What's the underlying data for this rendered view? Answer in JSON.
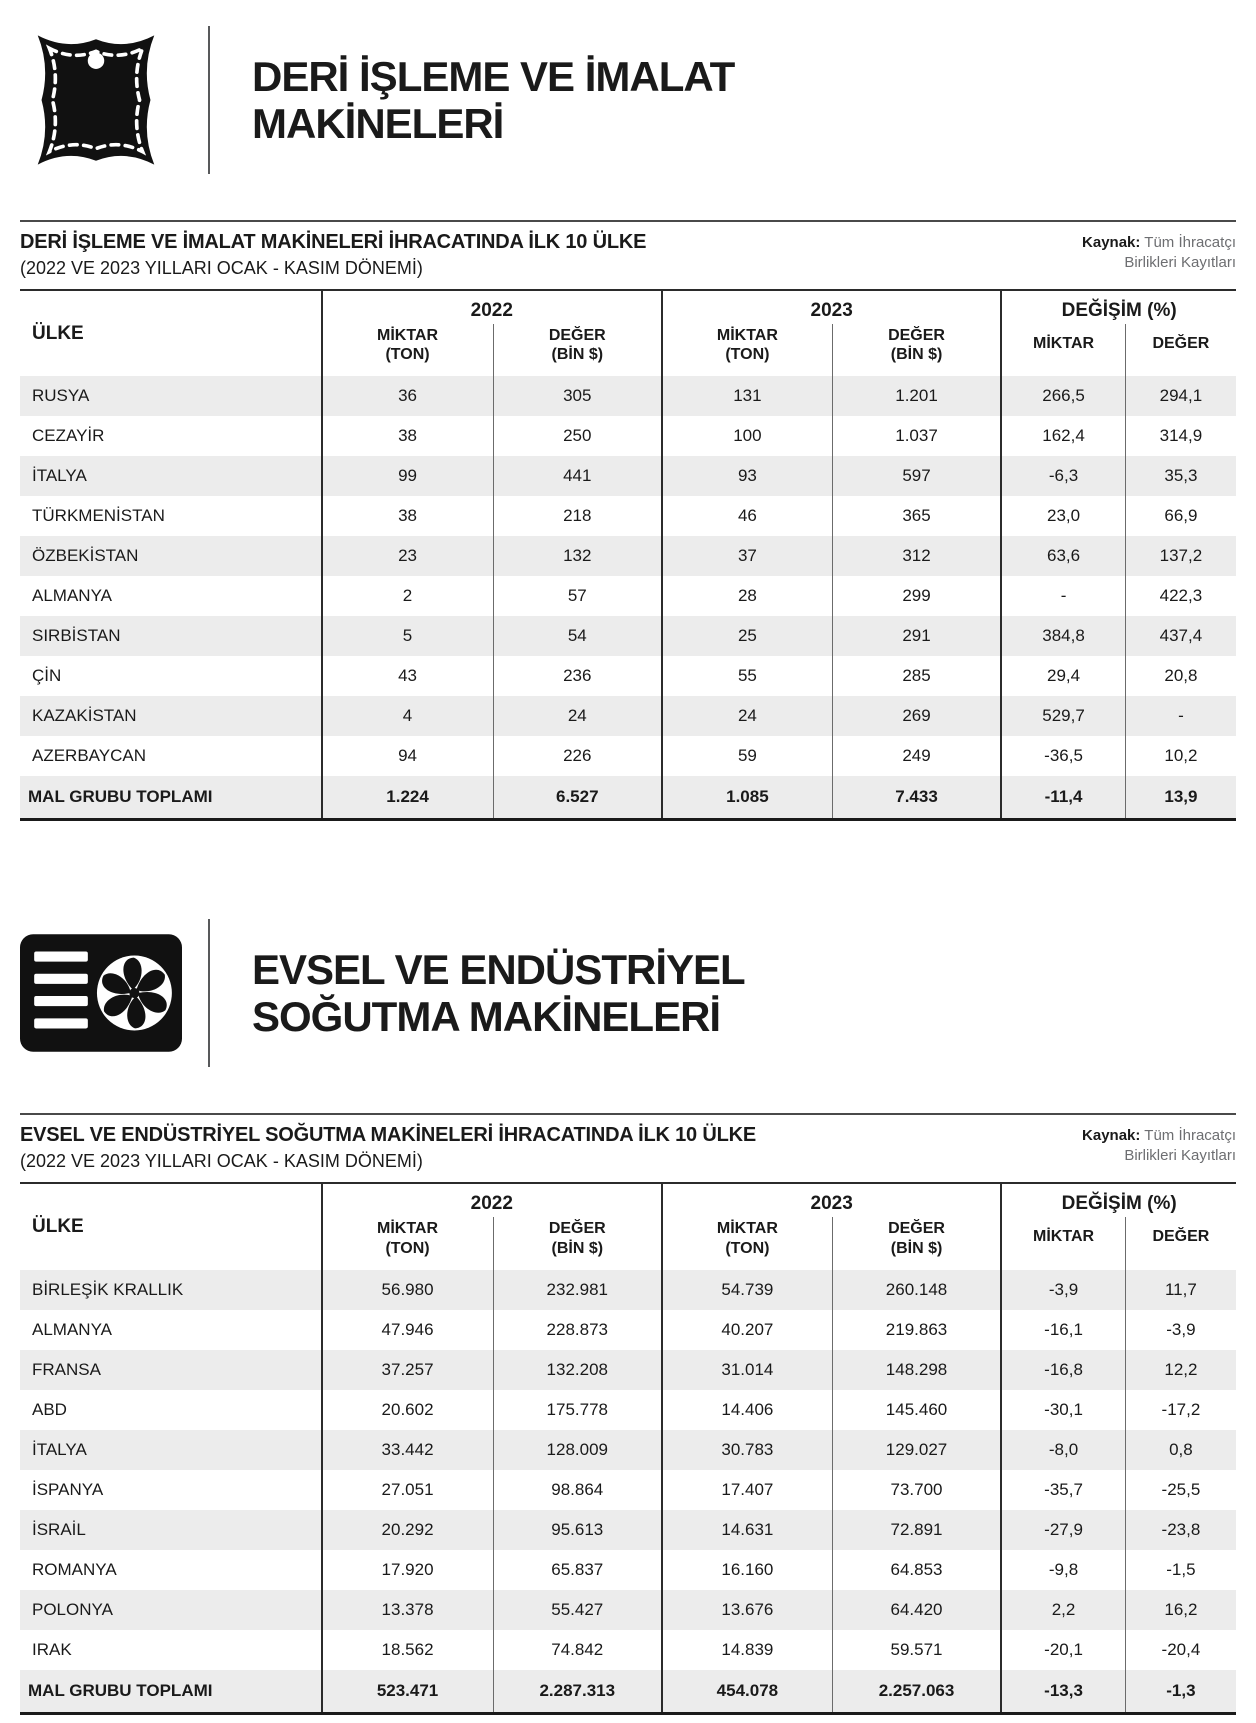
{
  "table_headers": {
    "country": "ÜLKE",
    "year_2022": "2022",
    "year_2023": "2023",
    "change": "DEĞİŞİM (%)",
    "miktar": "MİKTAR",
    "ton": "(TON)",
    "deger": "DEĞER",
    "bin_usd": "(BİN $)"
  },
  "sections": [
    {
      "icon": "leather-hide-icon",
      "title_line1": "DERİ İŞLEME VE İMALAT",
      "title_line2": "MAKİNELERİ",
      "table": {
        "title": "DERİ İŞLEME VE İMALAT MAKİNELERİ İHRACATINDA İLK 10 ÜLKE",
        "subtitle": "(2022 VE 2023 YILLARI OCAK - KASIM DÖNEMİ)",
        "source_label": "Kaynak:",
        "source_line1": "Tüm İhracatçı",
        "source_line2": "Birlikleri Kayıtları",
        "rows": [
          [
            "RUSYA",
            "36",
            "305",
            "131",
            "1.201",
            "266,5",
            "294,1"
          ],
          [
            "CEZAYİR",
            "38",
            "250",
            "100",
            "1.037",
            "162,4",
            "314,9"
          ],
          [
            "İTALYA",
            "99",
            "441",
            "93",
            "597",
            "-6,3",
            "35,3"
          ],
          [
            "TÜRKMENİSTAN",
            "38",
            "218",
            "46",
            "365",
            "23,0",
            "66,9"
          ],
          [
            "ÖZBEKİSTAN",
            "23",
            "132",
            "37",
            "312",
            "63,6",
            "137,2"
          ],
          [
            "ALMANYA",
            "2",
            "57",
            "28",
            "299",
            "-",
            "422,3"
          ],
          [
            "SIRBİSTAN",
            "5",
            "54",
            "25",
            "291",
            "384,8",
            "437,4"
          ],
          [
            "ÇİN",
            "43",
            "236",
            "55",
            "285",
            "29,4",
            "20,8"
          ],
          [
            "KAZAKİSTAN",
            "4",
            "24",
            "24",
            "269",
            "529,7",
            "-"
          ],
          [
            "AZERBAYCAN",
            "94",
            "226",
            "59",
            "249",
            "-36,5",
            "10,2"
          ]
        ],
        "total": [
          "MAL GRUBU TOPLAMI",
          "1.224",
          "6.527",
          "1.085",
          "7.433",
          "-11,4",
          "13,9"
        ]
      }
    },
    {
      "icon": "air-conditioner-icon",
      "title_line1": "EVSEL VE ENDÜSTRİYEL",
      "title_line2": "SOĞUTMA MAKİNELERİ",
      "table": {
        "title": "EVSEL VE ENDÜSTRİYEL SOĞUTMA MAKİNELERİ İHRACATINDA İLK 10 ÜLKE",
        "subtitle": "(2022 VE 2023 YILLARI OCAK - KASIM DÖNEMİ)",
        "source_label": "Kaynak:",
        "source_line1": "Tüm İhracatçı",
        "source_line2": "Birlikleri Kayıtları",
        "rows": [
          [
            "BİRLEŞİK KRALLIK",
            "56.980",
            "232.981",
            "54.739",
            "260.148",
            "-3,9",
            "11,7"
          ],
          [
            "ALMANYA",
            "47.946",
            "228.873",
            "40.207",
            "219.863",
            "-16,1",
            "-3,9"
          ],
          [
            "FRANSA",
            "37.257",
            "132.208",
            "31.014",
            "148.298",
            "-16,8",
            "12,2"
          ],
          [
            "ABD",
            "20.602",
            "175.778",
            "14.406",
            "145.460",
            "-30,1",
            "-17,2"
          ],
          [
            "İTALYA",
            "33.442",
            "128.009",
            "30.783",
            "129.027",
            "-8,0",
            "0,8"
          ],
          [
            "İSPANYA",
            "27.051",
            "98.864",
            "17.407",
            "73.700",
            "-35,7",
            "-25,5"
          ],
          [
            "İSRAİL",
            "20.292",
            "95.613",
            "14.631",
            "72.891",
            "-27,9",
            "-23,8"
          ],
          [
            "ROMANYA",
            "17.920",
            "65.837",
            "16.160",
            "64.853",
            "-9,8",
            "-1,5"
          ],
          [
            "POLONYA",
            "13.378",
            "55.427",
            "13.676",
            "64.420",
            "2,2",
            "16,2"
          ],
          [
            "IRAK",
            "18.562",
            "74.842",
            "14.839",
            "59.571",
            "-20,1",
            "-20,4"
          ]
        ],
        "total": [
          "MAL GRUBU TOPLAMI",
          "523.471",
          "2.287.313",
          "454.078",
          "2.257.063",
          "-13,3",
          "-1,3"
        ]
      }
    }
  ]
}
